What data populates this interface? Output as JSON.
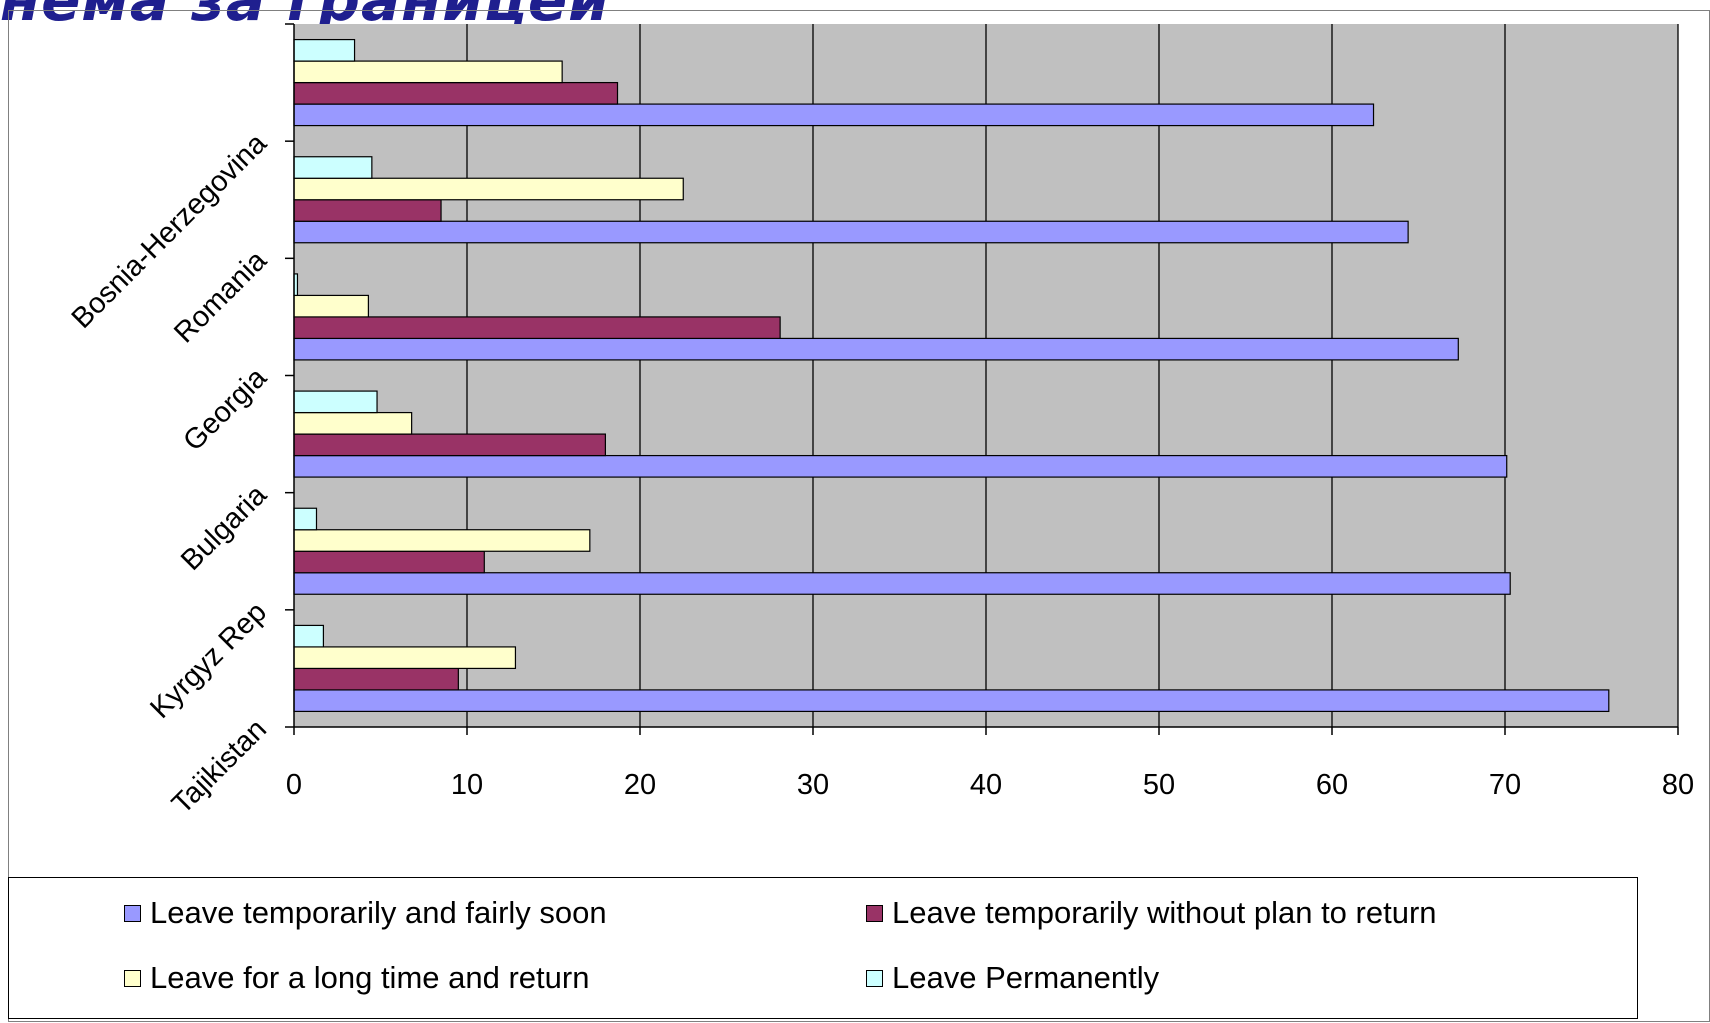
{
  "header": {
    "title_fragment": "нема за границей"
  },
  "chart_data": {
    "type": "bar",
    "orientation": "horizontal",
    "categories": [
      "Tajikistan",
      "Kyrgyz Rep",
      "Bulgaria",
      "Georgia",
      "Romania",
      "Bosnia-Herzegovina"
    ],
    "series": [
      {
        "name": "Leave temporarily and fairly soon",
        "color": "#9999ff",
        "values": [
          76,
          70.3,
          70.1,
          67.3,
          64.4,
          62.4
        ]
      },
      {
        "name": "Leave temporarily without plan to return",
        "color": "#993366",
        "values": [
          9.5,
          11,
          18,
          28.1,
          8.5,
          18.7
        ]
      },
      {
        "name": "Leave for a long time and return",
        "color": "#ffffcc",
        "values": [
          12.8,
          17.1,
          6.8,
          4.3,
          22.5,
          15.5
        ]
      },
      {
        "name": "Leave Permanently",
        "color": "#ccffff",
        "values": [
          1.7,
          1.3,
          4.8,
          0.2,
          4.5,
          3.5
        ]
      }
    ],
    "xlim": [
      0,
      80
    ],
    "xticks": [
      0,
      10,
      20,
      30,
      40,
      50,
      60,
      70,
      80
    ],
    "grid": true,
    "plot_background": "#c0c0c0",
    "legend_position": "bottom",
    "title": "",
    "xlabel": "",
    "ylabel": ""
  }
}
